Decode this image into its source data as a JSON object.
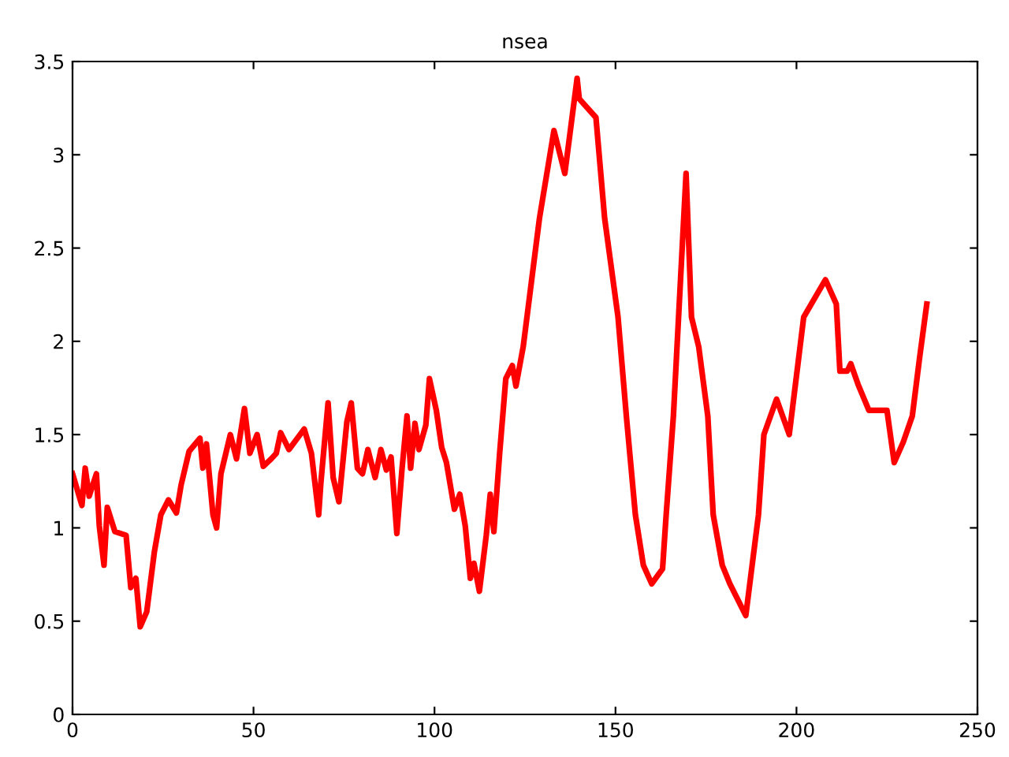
{
  "chart_data": {
    "type": "line",
    "title": "nsea",
    "xlim": [
      0,
      250
    ],
    "xticks": [
      0,
      50,
      100,
      150,
      200,
      250
    ],
    "ylim": [
      0,
      3.5
    ],
    "yticks": [
      0,
      0.5,
      1,
      1.5,
      2,
      2.5,
      3,
      3.5
    ],
    "grid": false,
    "legend": false,
    "marker": "none",
    "line_style": "solid",
    "series": [
      {
        "color": "#ff0000",
        "x": [
          0,
          2.6,
          3.5,
          4.6,
          6.6,
          7.4,
          8.7,
          9.6,
          11.7,
          14.8,
          16.1,
          17.5,
          18.7,
          20.5,
          22.6,
          24.4,
          26.5,
          28.7,
          30,
          32.2,
          35.2,
          36,
          37,
          38.8,
          39.8,
          41,
          43.6,
          45.3,
          47.5,
          49,
          51,
          52.7,
          54.9,
          56.3,
          57.5,
          59.8,
          64,
          66,
          68,
          68.6,
          70.6,
          72,
          73.6,
          75.8,
          77,
          78.7,
          80.1,
          81.6,
          83.6,
          85.2,
          86.7,
          88,
          89.6,
          91,
          92.4,
          93.4,
          94.6,
          95.7,
          97.6,
          98.6,
          100.5,
          102,
          103.3,
          105.5,
          107,
          108.5,
          109.9,
          110.9,
          112.4,
          114.3,
          115.4,
          116.4,
          118,
          119.7,
          121.5,
          122.5,
          124.5,
          129,
          133,
          136,
          139.4,
          140,
          144.6,
          147,
          150.7,
          153,
          155.5,
          157.7,
          160,
          163,
          164,
          166,
          169.5,
          171,
          173,
          175.5,
          177,
          179.5,
          181.6,
          186,
          189.5,
          191,
          194.5,
          198,
          202,
          208,
          211,
          212,
          214,
          215,
          217,
          220,
          225,
          227,
          229.5,
          232,
          234,
          236
        ],
        "values": [
          1.29,
          1.12,
          1.32,
          1.17,
          1.29,
          1.01,
          0.8,
          1.11,
          0.98,
          0.96,
          0.68,
          0.73,
          0.47,
          0.55,
          0.87,
          1.07,
          1.15,
          1.08,
          1.23,
          1.41,
          1.48,
          1.32,
          1.45,
          1.07,
          1.0,
          1.29,
          1.5,
          1.37,
          1.64,
          1.4,
          1.5,
          1.33,
          1.37,
          1.4,
          1.51,
          1.42,
          1.53,
          1.4,
          1.07,
          1.24,
          1.67,
          1.27,
          1.14,
          1.57,
          1.67,
          1.32,
          1.29,
          1.42,
          1.27,
          1.42,
          1.31,
          1.38,
          0.97,
          1.31,
          1.6,
          1.32,
          1.56,
          1.42,
          1.55,
          1.8,
          1.63,
          1.43,
          1.35,
          1.1,
          1.18,
          1.01,
          0.73,
          0.81,
          0.66,
          0.96,
          1.18,
          0.98,
          1.4,
          1.8,
          1.87,
          1.76,
          1.97,
          2.66,
          3.13,
          2.9,
          3.41,
          3.3,
          3.2,
          2.66,
          2.13,
          1.6,
          1.07,
          0.8,
          0.7,
          0.78,
          1.07,
          1.6,
          2.9,
          2.13,
          1.97,
          1.6,
          1.07,
          0.8,
          0.7,
          0.53,
          1.07,
          1.5,
          1.69,
          1.5,
          2.13,
          2.33,
          2.2,
          1.84,
          1.84,
          1.88,
          1.77,
          1.63,
          1.63,
          1.35,
          1.46,
          1.6,
          1.91,
          2.2
        ]
      }
    ]
  }
}
